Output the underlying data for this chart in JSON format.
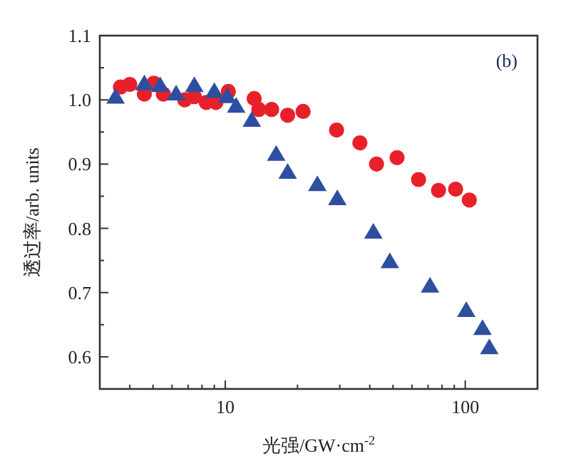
{
  "chart_data": {
    "type": "scatter",
    "xlabel": "光强/GW·cm$^{-2}$",
    "ylabel": "透过率/arb. units",
    "annotations": [
      "(b)"
    ],
    "log": "x",
    "xlim": [
      3,
      200
    ],
    "ylim": [
      0.55,
      1.1
    ],
    "xticks": [
      {
        "value": 3,
        "label": null
      },
      {
        "value": 4,
        "label": null
      },
      {
        "value": 5,
        "label": null
      },
      {
        "value": 6,
        "label": null
      },
      {
        "value": 7,
        "label": null
      },
      {
        "value": 8,
        "label": null
      },
      {
        "value": 9,
        "label": null
      },
      10,
      {
        "value": 20,
        "label": null
      },
      {
        "value": 30,
        "label": null
      },
      {
        "value": 40,
        "label": null
      },
      {
        "value": 50,
        "label": null
      },
      {
        "value": 60,
        "label": null
      },
      {
        "value": 70,
        "label": null
      },
      {
        "value": 80,
        "label": null
      },
      {
        "value": 90,
        "label": null
      },
      100,
      {
        "value": 200,
        "label": null
      }
    ],
    "yticks": [
      {
        "value": 0.6,
        "label": "0.6"
      },
      {
        "value": 0.65,
        "label": null
      },
      {
        "value": 0.7,
        "label": "0.7"
      },
      {
        "value": 0.75,
        "label": null
      },
      {
        "value": 0.8,
        "label": "0.8"
      },
      {
        "value": 0.85,
        "label": null
      },
      {
        "value": 0.9,
        "label": "0.9"
      },
      {
        "value": 0.95,
        "label": null
      },
      {
        "value": 1.0,
        "label": "1.0"
      },
      {
        "value": 1.05,
        "label": null
      },
      {
        "value": 1.1,
        "label": "1.1"
      }
    ],
    "series": [
      {
        "color": "#e8202a",
        "marker": "circle",
        "x": [
          3.66,
          4.0,
          4.6,
          5.04,
          5.52,
          6.78,
          7.43,
          8.33,
          9.14,
          10.3,
          13.2,
          13.8,
          15.6,
          18.2,
          21.1,
          29.1,
          36.4,
          42.7,
          52,
          63.9,
          77.4,
          91.2,
          104
        ],
        "values": [
          1.02,
          1.024,
          1.009,
          1.026,
          1.009,
          1.0,
          1.005,
          0.996,
          0.996,
          1.013,
          1.002,
          0.985,
          0.985,
          0.976,
          0.982,
          0.953,
          0.933,
          0.9,
          0.91,
          0.876,
          0.859,
          0.861,
          0.844
        ]
      },
      {
        "color": "#2e4fa0",
        "marker": "triangle",
        "x": [
          3.49,
          4.6,
          5.35,
          6.24,
          7.43,
          9.0,
          10.2,
          11.1,
          12.9,
          16.3,
          18.2,
          24.2,
          29.3,
          41.4,
          48.5,
          71.3,
          101,
          118,
          126
        ],
        "values": [
          1.004,
          1.025,
          1.022,
          1.009,
          1.022,
          1.013,
          1.005,
          0.99,
          0.968,
          0.915,
          0.887,
          0.868,
          0.846,
          0.794,
          0.748,
          0.71,
          0.672,
          0.644,
          0.614
        ]
      }
    ]
  }
}
